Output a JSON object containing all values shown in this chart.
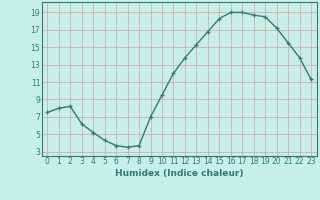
{
  "x": [
    0,
    1,
    2,
    3,
    4,
    5,
    6,
    7,
    8,
    9,
    10,
    11,
    12,
    13,
    14,
    15,
    16,
    17,
    18,
    19,
    20,
    21,
    22,
    23
  ],
  "y": [
    7.5,
    8.0,
    8.2,
    6.2,
    5.2,
    4.3,
    3.7,
    3.5,
    3.7,
    7.0,
    9.5,
    12.0,
    13.8,
    15.3,
    16.8,
    18.3,
    19.0,
    19.0,
    18.7,
    18.5,
    17.2,
    15.5,
    13.8,
    11.3
  ],
  "line_color": "#2e7d6e",
  "marker": "+",
  "bg_color": "#c8eee8",
  "grid_color": "#a8d8d0",
  "tick_color": "#2e7d6e",
  "label_color": "#2e7d6e",
  "xlabel": "Humidex (Indice chaleur)",
  "xlim": [
    -0.5,
    23.5
  ],
  "ylim": [
    2.5,
    20.2
  ],
  "yticks": [
    3,
    5,
    7,
    9,
    11,
    13,
    15,
    17,
    19
  ],
  "xticks": [
    0,
    1,
    2,
    3,
    4,
    5,
    6,
    7,
    8,
    9,
    10,
    11,
    12,
    13,
    14,
    15,
    16,
    17,
    18,
    19,
    20,
    21,
    22,
    23
  ],
  "xtick_labels": [
    "0",
    "1",
    "2",
    "3",
    "4",
    "5",
    "6",
    "7",
    "8",
    "9",
    "10",
    "11",
    "12",
    "13",
    "14",
    "15",
    "16",
    "17",
    "18",
    "19",
    "20",
    "21",
    "22",
    "23"
  ],
  "tick_fontsize": 5.5,
  "xlabel_fontsize": 6.5,
  "line_width": 1.0,
  "marker_size": 3.5
}
